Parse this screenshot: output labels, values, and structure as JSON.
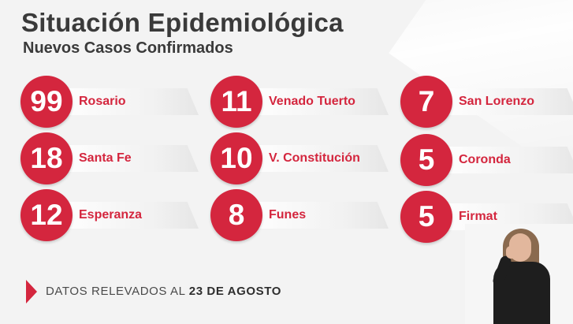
{
  "header": {
    "title": "Situación Epidemiológica",
    "subtitle": "Nuevos Casos Confirmados"
  },
  "cases": [
    {
      "count": "99",
      "city": "Rosario"
    },
    {
      "count": "11",
      "city": "Venado Tuerto"
    },
    {
      "count": "7",
      "city": "San Lorenzo"
    },
    {
      "count": "18",
      "city": "Santa Fe"
    },
    {
      "count": "10",
      "city": "V. Constitución"
    },
    {
      "count": "5",
      "city": "Coronda"
    },
    {
      "count": "12",
      "city": "Esperanza"
    },
    {
      "count": "8",
      "city": "Funes"
    },
    {
      "count": "5",
      "city": "Firmat"
    }
  ],
  "footer": {
    "prefix": "DATOS RELEVADOS AL ",
    "date": "23 DE AGOSTO"
  },
  "colors": {
    "accent": "#d4263e",
    "title": "#3a3a3a",
    "background": "#f3f3f3"
  }
}
